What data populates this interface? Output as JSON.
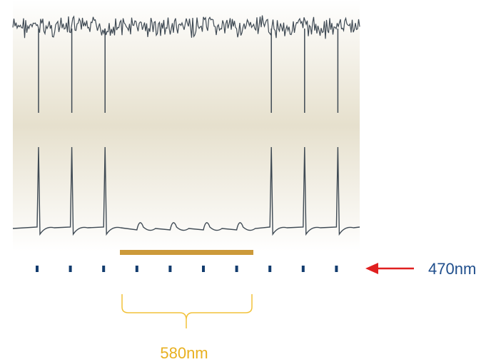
{
  "figure": {
    "labels": {
      "blue_light": "470nm",
      "yellow_light": "580nm"
    },
    "colors": {
      "panel_top": "#ffffff",
      "panel_mid": "#e6e0cd",
      "panel_bottom": "#ffffff",
      "trace": "#3f4a54",
      "pulse_ticks": "#123c6e",
      "yellow_bar": "#cc9a3a",
      "brace": "#f2c23a",
      "arrow": "#e02020",
      "label_470": "#1f4e8c",
      "label_580": "#e8b020"
    },
    "spike_pulse_indices": [
      0,
      1,
      2,
      7,
      8,
      9
    ],
    "pulse_count": 10
  }
}
